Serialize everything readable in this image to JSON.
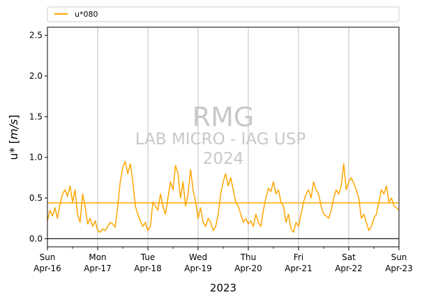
{
  "chart_data": {
    "type": "line",
    "xlabel": "2023",
    "ylabel": "u* [m/s]",
    "ylim": [
      -0.1,
      2.6
    ],
    "yticks": [
      "0.0",
      "0.5",
      "1.0",
      "1.5",
      "2.0",
      "2.5"
    ],
    "xlim": [
      "2023-04-16",
      "2023-04-23"
    ],
    "xtick_labels": [
      {
        "day": "Sun",
        "date": "Apr-16"
      },
      {
        "day": "Mon",
        "date": "Apr-17"
      },
      {
        "day": "Tue",
        "date": "Apr-18"
      },
      {
        "day": "Wed",
        "date": "Apr-19"
      },
      {
        "day": "Thu",
        "date": "Apr-20"
      },
      {
        "day": "Fri",
        "date": "Apr-21"
      },
      {
        "day": "Sat",
        "date": "Apr-22"
      },
      {
        "day": "Sun",
        "date": "Apr-23"
      }
    ],
    "legend": {
      "placement": "top-left, above plot",
      "entries": [
        "u*080"
      ]
    },
    "grid": "vertical lines at each day",
    "zero_line": 0.0,
    "mean_line": 0.44,
    "colors": {
      "series": "#ffa500",
      "grid": "#b0b0b0",
      "watermark": "#c8c8c8"
    },
    "watermark": {
      "line1": "RMG",
      "line2": "LAB MICRO - IAG USP",
      "line3": "2024"
    },
    "series": [
      {
        "name": "u*080",
        "x": [
          0,
          0.05,
          0.1,
          0.15,
          0.2,
          0.25,
          0.3,
          0.35,
          0.4,
          0.45,
          0.5,
          0.55,
          0.6,
          0.65,
          0.7,
          0.75,
          0.8,
          0.85,
          0.9,
          0.95,
          1.0,
          1.05,
          1.1,
          1.15,
          1.2,
          1.25,
          1.3,
          1.35,
          1.4,
          1.45,
          1.5,
          1.55,
          1.6,
          1.65,
          1.7,
          1.75,
          1.8,
          1.85,
          1.9,
          1.95,
          2.0,
          2.05,
          2.1,
          2.15,
          2.2,
          2.25,
          2.3,
          2.35,
          2.4,
          2.45,
          2.5,
          2.55,
          2.6,
          2.65,
          2.7,
          2.75,
          2.8,
          2.85,
          2.9,
          2.95,
          3.0,
          3.05,
          3.1,
          3.15,
          3.2,
          3.25,
          3.3,
          3.35,
          3.4,
          3.45,
          3.5,
          3.55,
          3.6,
          3.65,
          3.7,
          3.75,
          3.8,
          3.85,
          3.9,
          3.95,
          4.0,
          4.05,
          4.1,
          4.15,
          4.2,
          4.25,
          4.3,
          4.35,
          4.4,
          4.45,
          4.5,
          4.55,
          4.6,
          4.65,
          4.7,
          4.75,
          4.8,
          4.85,
          4.9,
          4.95,
          5.0,
          5.05,
          5.1,
          5.15,
          5.2,
          5.25,
          5.3,
          5.35,
          5.4,
          5.45,
          5.5,
          5.55,
          5.6,
          5.65,
          5.7,
          5.75,
          5.8,
          5.85,
          5.9,
          5.95,
          6.0,
          6.05,
          6.1,
          6.15,
          6.2,
          6.25,
          6.3,
          6.35,
          6.4,
          6.45,
          6.5,
          6.55,
          6.6,
          6.65,
          6.7,
          6.75,
          6.8,
          6.85,
          6.9,
          6.95,
          7.0
        ],
        "values": [
          0.22,
          0.35,
          0.28,
          0.38,
          0.25,
          0.42,
          0.55,
          0.6,
          0.52,
          0.65,
          0.45,
          0.6,
          0.3,
          0.2,
          0.55,
          0.4,
          0.18,
          0.25,
          0.15,
          0.22,
          0.1,
          0.08,
          0.12,
          0.1,
          0.15,
          0.2,
          0.18,
          0.14,
          0.4,
          0.7,
          0.88,
          0.95,
          0.8,
          0.92,
          0.7,
          0.4,
          0.3,
          0.22,
          0.15,
          0.2,
          0.1,
          0.15,
          0.45,
          0.4,
          0.35,
          0.55,
          0.4,
          0.3,
          0.5,
          0.7,
          0.6,
          0.9,
          0.8,
          0.5,
          0.7,
          0.4,
          0.55,
          0.85,
          0.6,
          0.45,
          0.25,
          0.38,
          0.2,
          0.15,
          0.25,
          0.2,
          0.1,
          0.15,
          0.3,
          0.55,
          0.7,
          0.8,
          0.65,
          0.75,
          0.6,
          0.45,
          0.4,
          0.3,
          0.2,
          0.25,
          0.18,
          0.22,
          0.15,
          0.3,
          0.2,
          0.15,
          0.35,
          0.5,
          0.62,
          0.58,
          0.7,
          0.55,
          0.6,
          0.45,
          0.4,
          0.2,
          0.3,
          0.12,
          0.08,
          0.2,
          0.15,
          0.3,
          0.45,
          0.55,
          0.6,
          0.5,
          0.7,
          0.6,
          0.55,
          0.4,
          0.3,
          0.28,
          0.25,
          0.35,
          0.5,
          0.6,
          0.55,
          0.65,
          0.92,
          0.6,
          0.7,
          0.75,
          0.68,
          0.6,
          0.5,
          0.25,
          0.3,
          0.2,
          0.1,
          0.15,
          0.25,
          0.3,
          0.45,
          0.6,
          0.55,
          0.65,
          0.45,
          0.5,
          0.4,
          0.38,
          0.35
        ]
      }
    ]
  }
}
